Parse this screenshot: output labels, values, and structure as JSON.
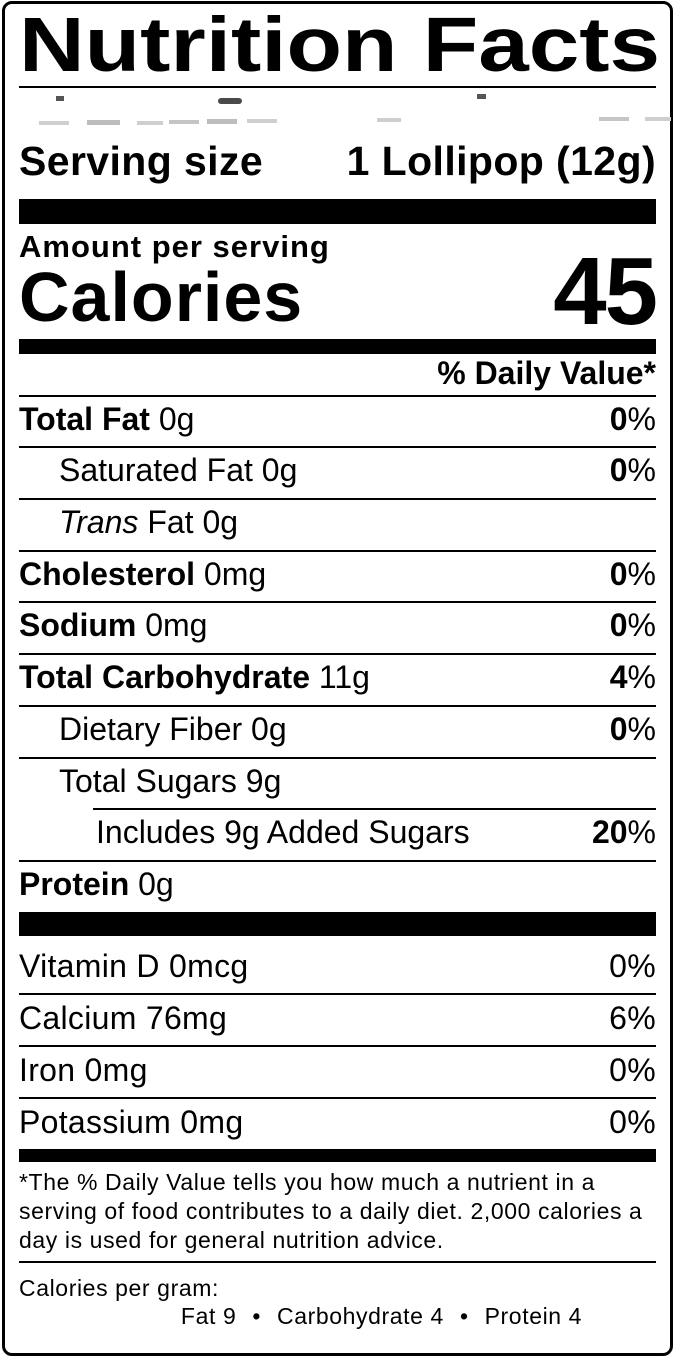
{
  "title": "Nutrition Facts",
  "serving": {
    "label": "Serving size",
    "value": "1 Lollipop (12g)"
  },
  "calories": {
    "section_label": "Amount per serving",
    "label": "Calories",
    "value": "45"
  },
  "daily_value_header": "% Daily Value*",
  "percent_sign": "%",
  "nutrients": [
    {
      "name": "Total Fat",
      "amount": "0g",
      "dv": "0"
    },
    {
      "name": "Saturated Fat",
      "amount": "0g",
      "dv": "0"
    },
    {
      "name_italic": "Trans",
      "name": "Fat",
      "amount": "0g"
    },
    {
      "name": "Cholesterol",
      "amount": "0mg",
      "dv": "0"
    },
    {
      "name": "Sodium",
      "amount": "0mg",
      "dv": "0"
    },
    {
      "name": "Total Carbohydrate",
      "amount": "11g",
      "dv": "4"
    },
    {
      "name": "Dietary Fiber",
      "amount": "0g",
      "dv": "0"
    },
    {
      "name": "Total Sugars",
      "amount": "9g"
    },
    {
      "name": "Includes 9g Added Sugars",
      "dv": "20"
    },
    {
      "name": "Protein",
      "amount": "0g"
    }
  ],
  "vitamins": [
    {
      "name": "Vitamin D 0mcg",
      "dv": "0"
    },
    {
      "name": "Calcium 76mg",
      "dv": "6"
    },
    {
      "name": "Iron 0mg",
      "dv": "0"
    },
    {
      "name": "Potassium 0mg",
      "dv": "0"
    }
  ],
  "footnote_lines": [
    "*The % Daily Value tells you how much a nutrient in a",
    "serving of food contributes to a daily diet. 2,000 calories a",
    "day is used for general nutrition advice."
  ],
  "calories_per_gram": {
    "label": "Calories per gram:",
    "bullet": "•",
    "items": [
      "Fat 9",
      "Carbohydrate 4",
      "Protein 4"
    ]
  }
}
